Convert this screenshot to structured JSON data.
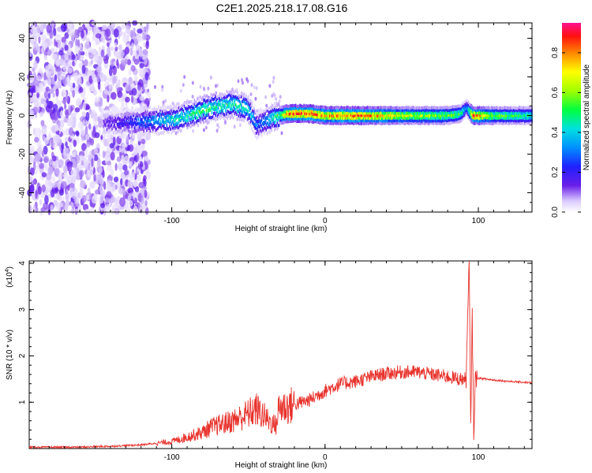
{
  "title": "C2E1.2025.218.17.08.G16",
  "chart_data": [
    {
      "type": "heatmap",
      "xlabel": "Height of straight line (km)",
      "ylabel": "Frequency (Hz)",
      "xlim": [
        -193,
        135
      ],
      "ylim": [
        -50,
        48
      ],
      "xticks": [
        -100,
        0,
        100
      ],
      "yticks": [
        -40,
        -20,
        0,
        20,
        40
      ],
      "colorbar": {
        "label": "Normalized spectral amplitude",
        "range": [
          0,
          0.95
        ],
        "ticks": [
          0.0,
          0.2,
          0.4,
          0.6,
          0.8
        ]
      },
      "ridge": {
        "description_free": true,
        "x": [
          -140,
          -120,
          -100,
          -90,
          -80,
          -70,
          -60,
          -50,
          -45,
          -40,
          -35,
          -30,
          -25,
          -20,
          -10,
          0,
          10,
          20,
          40,
          60,
          80,
          88,
          92,
          96,
          110,
          135
        ],
        "y": [
          -4,
          -3,
          -2,
          0,
          3,
          5,
          6,
          3,
          -5,
          -3,
          -1,
          0,
          1,
          1,
          1,
          0,
          0,
          0,
          0,
          0,
          0,
          1,
          4,
          0,
          0,
          0
        ],
        "amplitude": [
          0.15,
          0.3,
          0.45,
          0.5,
          0.55,
          0.5,
          0.5,
          0.45,
          0.3,
          0.35,
          0.45,
          0.6,
          0.85,
          0.9,
          0.9,
          0.8,
          0.85,
          0.9,
          0.75,
          0.65,
          0.6,
          0.55,
          0.3,
          0.9,
          0.6,
          0.5
        ]
      },
      "noise_region_x": [
        -193,
        -125
      ]
    },
    {
      "type": "line",
      "xlabel": "Height of straight line (km)",
      "ylabel": "SNR (10 * v/v)",
      "y_multiplier": "(x10",
      "y_multiplier_exp": "4",
      "y_multiplier_close": ")",
      "xlim": [
        -193,
        135
      ],
      "ylim": [
        0,
        4.05
      ],
      "xticks": [
        -100,
        0,
        100
      ],
      "yticks": [
        1,
        2,
        3,
        4
      ],
      "color": "#e8322c",
      "series": [
        {
          "x": [
            -193,
            -160,
            -140,
            -120,
            -100,
            -90,
            -80,
            -75,
            -70,
            -60,
            -50,
            -45,
            -40,
            -35,
            -32,
            -30,
            -25,
            -20,
            -10,
            0,
            10,
            20,
            30,
            40,
            50,
            60,
            70,
            80,
            88,
            92,
            94,
            95,
            96,
            97,
            98,
            100,
            110,
            120,
            135
          ],
          "values": [
            0.03,
            0.03,
            0.05,
            0.08,
            0.15,
            0.25,
            0.35,
            0.45,
            0.5,
            0.6,
            0.75,
            0.85,
            0.7,
            0.55,
            0.5,
            0.9,
            0.9,
            0.95,
            1.05,
            1.25,
            1.4,
            1.45,
            1.55,
            1.62,
            1.65,
            1.65,
            1.6,
            1.55,
            1.5,
            1.5,
            4.0,
            0.5,
            2.9,
            0.3,
            1.5,
            1.52,
            1.48,
            1.45,
            1.42
          ]
        }
      ]
    }
  ]
}
